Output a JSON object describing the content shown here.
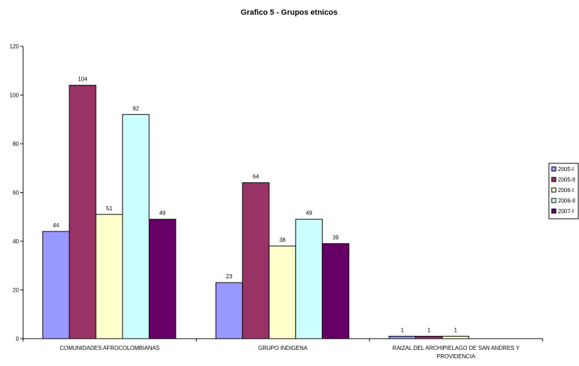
{
  "chart_data": {
    "type": "bar",
    "title": "Grafico 5 - Grupos etnicos",
    "xlabel": "",
    "ylabel": "",
    "ylim": [
      0,
      120
    ],
    "yticks": [
      0,
      20,
      40,
      60,
      80,
      100,
      120
    ],
    "grid": false,
    "legend_position": "right",
    "categories": [
      [
        "COMUNIDADES AFROCOLOMBIANAS"
      ],
      [
        "GRUPO INDIGENA"
      ],
      [
        "RAIZAL DEL ARCHIPIELAGO DE SAN ANDRES Y",
        "PROVIDENCIA"
      ]
    ],
    "series": [
      {
        "name": "2005-I",
        "color": "#9999ff",
        "values": [
          44,
          23,
          1
        ]
      },
      {
        "name": "2005-II",
        "color": "#993366",
        "values": [
          104,
          64,
          1
        ]
      },
      {
        "name": "2006-I",
        "color": "#ffffcc",
        "values": [
          51,
          38,
          1
        ]
      },
      {
        "name": "2006-II",
        "color": "#ccffff",
        "values": [
          92,
          49,
          null
        ]
      },
      {
        "name": "2007-I",
        "color": "#660066",
        "values": [
          49,
          39,
          null
        ]
      }
    ]
  }
}
